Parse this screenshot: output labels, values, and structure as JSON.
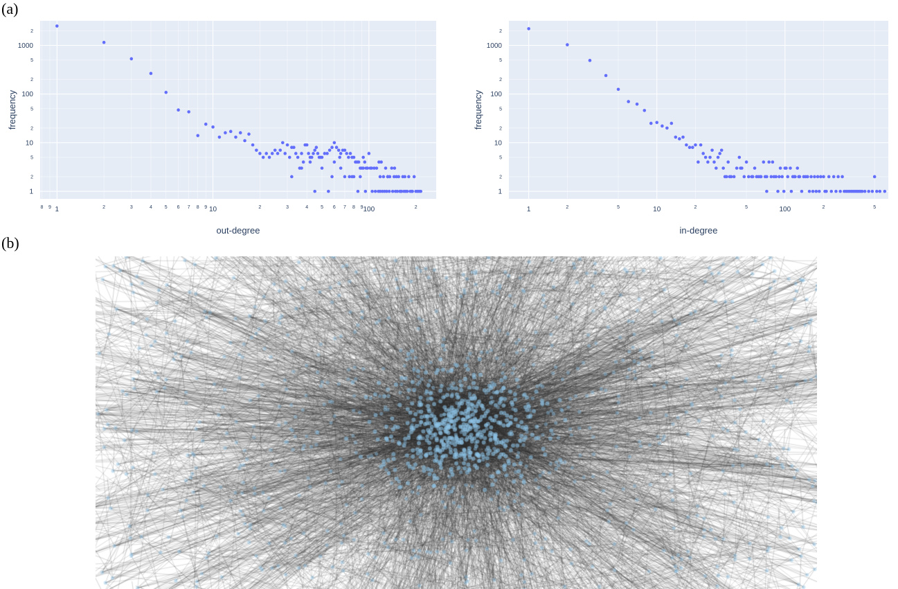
{
  "panels": {
    "a": "(a)",
    "b": "(b)"
  },
  "chart_data": [
    {
      "type": "scatter",
      "title": "",
      "xlabel": "out-degree",
      "ylabel": "frequency",
      "xscale": "log",
      "yscale": "log",
      "xlim": [
        0.78,
        270
      ],
      "ylim": [
        0.7,
        3200
      ],
      "grid": true,
      "color": "#636efa",
      "plot_bg": "#e5ecf6",
      "x_major_ticks": [
        {
          "v": 1,
          "t": "1"
        },
        {
          "v": 10,
          "t": "10"
        },
        {
          "v": 100,
          "t": "100"
        }
      ],
      "x_minor_ticks": [
        {
          "v": 0.8,
          "t": "8"
        },
        {
          "v": 0.9,
          "t": "9"
        },
        {
          "v": 2,
          "t": "2"
        },
        {
          "v": 3,
          "t": "3"
        },
        {
          "v": 4,
          "t": "4"
        },
        {
          "v": 5,
          "t": "5"
        },
        {
          "v": 6,
          "t": "6"
        },
        {
          "v": 7,
          "t": "7"
        },
        {
          "v": 8,
          "t": "8"
        },
        {
          "v": 9,
          "t": "9"
        },
        {
          "v": 20,
          "t": "2"
        },
        {
          "v": 30,
          "t": "3"
        },
        {
          "v": 40,
          "t": "4"
        },
        {
          "v": 50,
          "t": "5"
        },
        {
          "v": 60,
          "t": "6"
        },
        {
          "v": 70,
          "t": "7"
        },
        {
          "v": 80,
          "t": "8"
        },
        {
          "v": 90,
          "t": "9"
        },
        {
          "v": 200,
          "t": "2"
        }
      ],
      "y_major_ticks": [
        {
          "v": 1,
          "t": "1"
        },
        {
          "v": 10,
          "t": "10"
        },
        {
          "v": 100,
          "t": "100"
        },
        {
          "v": 1000,
          "t": "1000"
        }
      ],
      "y_minor_ticks": [
        {
          "v": 2,
          "t": "2"
        },
        {
          "v": 5,
          "t": "5"
        },
        {
          "v": 20,
          "t": "2"
        },
        {
          "v": 50,
          "t": "5"
        },
        {
          "v": 200,
          "t": "2"
        },
        {
          "v": 500,
          "t": "5"
        },
        {
          "v": 2000,
          "t": "2"
        }
      ],
      "series": [
        {
          "x": [
            1,
            2,
            3,
            4,
            5,
            6,
            7,
            8,
            9,
            10,
            11,
            12,
            13,
            14,
            15,
            16,
            17,
            18,
            19,
            20,
            21,
            22,
            23,
            24,
            25,
            26,
            27,
            28,
            29,
            30,
            31,
            32,
            33,
            34,
            35,
            36,
            37,
            38,
            39,
            40,
            41,
            42,
            43,
            44,
            45,
            46,
            47,
            48,
            49,
            50,
            52,
            54,
            56,
            58,
            60,
            62,
            64,
            66,
            68,
            70,
            72,
            74,
            76,
            78,
            80,
            82,
            84,
            86,
            88,
            90,
            92,
            94,
            96,
            98,
            100,
            104,
            108,
            112,
            116,
            120,
            124,
            128,
            132,
            136,
            140,
            145,
            150,
            155,
            160,
            165,
            170,
            180,
            190,
            200,
            210,
            55,
            75,
            85,
            95,
            105,
            110,
            115,
            118,
            122,
            126,
            130,
            135,
            142,
            148,
            152,
            158,
            162,
            168,
            172,
            176,
            184,
            188,
            195,
            205,
            215,
            45,
            50,
            60,
            65,
            70,
            78,
            88,
            32,
            37,
            42,
            58,
            66,
            80,
            92,
            102,
            118,
            132,
            146
          ],
          "y": [
            2500,
            1150,
            530,
            265,
            108,
            47,
            43,
            14,
            24,
            21,
            13,
            16,
            17,
            13,
            16,
            11,
            15,
            9,
            7,
            6,
            5,
            6,
            5,
            6,
            7,
            6,
            7,
            10,
            6,
            9,
            5,
            8,
            8,
            6,
            5,
            3,
            6,
            4,
            9,
            9,
            6,
            5,
            5,
            6,
            7,
            8,
            6,
            5,
            5,
            5,
            6,
            6,
            7,
            8,
            10,
            8,
            7,
            6,
            7,
            7,
            6,
            5,
            6,
            5,
            5,
            4,
            4,
            4,
            3,
            3,
            5,
            4,
            3,
            3,
            6,
            3,
            3,
            3,
            4,
            4,
            2,
            3,
            2,
            2,
            3,
            2,
            2,
            2,
            1,
            2,
            2,
            2,
            1,
            1,
            1,
            1,
            2,
            1,
            1,
            1,
            1,
            1,
            1,
            1,
            1,
            1,
            1,
            1,
            1,
            1,
            1,
            1,
            1,
            1,
            1,
            1,
            1,
            2,
            1,
            1,
            1,
            3,
            4,
            5,
            2,
            2,
            2,
            2,
            3,
            4,
            2,
            3,
            2,
            3,
            3,
            2,
            2,
            3
          ]
        }
      ]
    },
    {
      "type": "scatter",
      "title": "",
      "xlabel": "in-degree",
      "ylabel": "frequency",
      "xscale": "log",
      "yscale": "log",
      "xlim": [
        0.7,
        640
      ],
      "ylim": [
        0.7,
        3200
      ],
      "grid": true,
      "color": "#636efa",
      "plot_bg": "#e5ecf6",
      "x_major_ticks": [
        {
          "v": 1,
          "t": "1"
        },
        {
          "v": 10,
          "t": "10"
        },
        {
          "v": 100,
          "t": "100"
        }
      ],
      "x_minor_ticks": [
        {
          "v": 2,
          "t": "2"
        },
        {
          "v": 5,
          "t": "5"
        },
        {
          "v": 20,
          "t": "2"
        },
        {
          "v": 50,
          "t": "5"
        },
        {
          "v": 200,
          "t": "2"
        },
        {
          "v": 500,
          "t": "5"
        }
      ],
      "y_major_ticks": [
        {
          "v": 1,
          "t": "1"
        },
        {
          "v": 10,
          "t": "10"
        },
        {
          "v": 100,
          "t": "100"
        },
        {
          "v": 1000,
          "t": "1000"
        }
      ],
      "y_minor_ticks": [
        {
          "v": 2,
          "t": "2"
        },
        {
          "v": 5,
          "t": "5"
        },
        {
          "v": 20,
          "t": "2"
        },
        {
          "v": 50,
          "t": "5"
        },
        {
          "v": 200,
          "t": "2"
        },
        {
          "v": 500,
          "t": "5"
        },
        {
          "v": 2000,
          "t": "2"
        }
      ],
      "series": [
        {
          "x": [
            1,
            2,
            3,
            4,
            5,
            6,
            7,
            8,
            9,
            10,
            11,
            12,
            13,
            14,
            15,
            16,
            17,
            18,
            19,
            20,
            21,
            22,
            23,
            24,
            25,
            26,
            27,
            28,
            29,
            30,
            31,
            32,
            33,
            34,
            35,
            36,
            37,
            38,
            40,
            42,
            44,
            46,
            48,
            50,
            52,
            55,
            58,
            60,
            62,
            65,
            68,
            70,
            72,
            75,
            78,
            80,
            85,
            90,
            95,
            100,
            105,
            110,
            115,
            120,
            125,
            130,
            140,
            150,
            160,
            170,
            180,
            190,
            200,
            220,
            240,
            260,
            280,
            300,
            320,
            340,
            360,
            380,
            400,
            450,
            500,
            550,
            600,
            88,
            98,
            112,
            135,
            155,
            175,
            210,
            230,
            250,
            270,
            290,
            310,
            330,
            350,
            370,
            390,
            420,
            480,
            520,
            45,
            56,
            64,
            72,
            82,
            92,
            102,
            118,
            128,
            145,
            165,
            185,
            205
          ],
          "y": [
            2200,
            1030,
            490,
            240,
            125,
            70,
            62,
            46,
            25,
            26,
            22,
            20,
            25,
            13,
            12,
            13,
            9,
            8,
            8,
            9,
            4,
            9,
            6,
            5,
            4,
            5,
            7,
            4,
            3,
            5,
            6,
            7,
            3,
            2,
            2,
            4,
            2,
            2,
            2,
            3,
            5,
            3,
            2,
            4,
            2,
            2,
            3,
            2,
            2,
            2,
            4,
            2,
            2,
            4,
            2,
            4,
            2,
            2,
            2,
            3,
            2,
            3,
            2,
            2,
            3,
            2,
            2,
            2,
            2,
            2,
            2,
            2,
            2,
            2,
            2,
            2,
            2,
            1,
            1,
            1,
            1,
            1,
            1,
            1,
            2,
            1,
            1,
            1,
            1,
            1,
            1,
            1,
            1,
            1,
            1,
            1,
            1,
            1,
            1,
            1,
            1,
            1,
            1,
            1,
            1,
            1,
            3,
            2,
            2,
            1,
            2,
            3,
            3,
            2,
            2,
            2,
            1,
            1,
            1
          ]
        }
      ]
    }
  ],
  "network": {
    "node_color": "#8ec3e6",
    "edge_color": "#2b2b2b",
    "background": "#ffffff"
  }
}
